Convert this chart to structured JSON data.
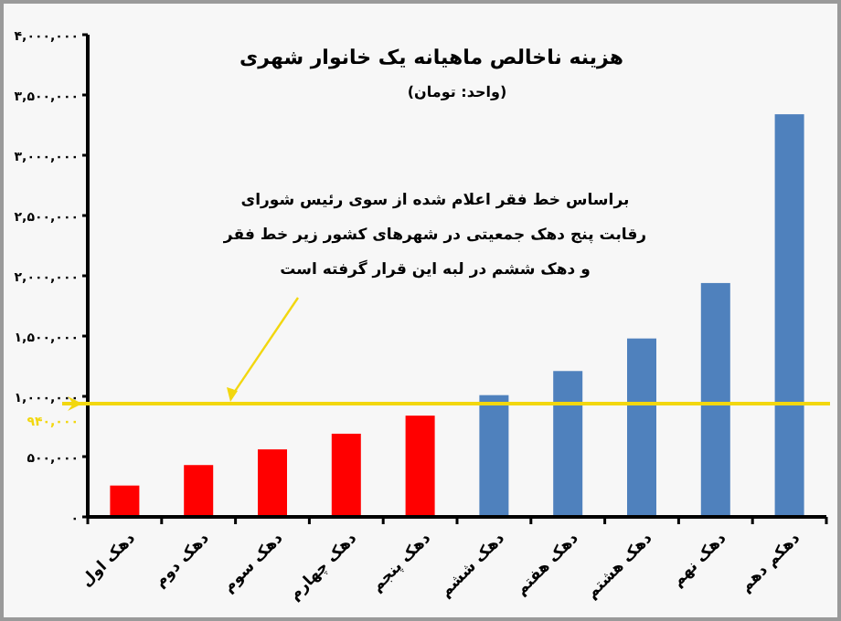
{
  "chart_data": {
    "type": "bar",
    "title": "هزینه ناخالص ماهیانه یک خانوار شهری",
    "subtitle": "(واحد: تومان)",
    "categories": [
      "دهک اول",
      "دهک دوم",
      "دهک سوم",
      "دهک چهارم",
      "دهک پنجم",
      "دهک ششم",
      "دهک هفتم",
      "دهک هشتم",
      "دهک نهم",
      "دهکم دهم"
    ],
    "values": [
      260000,
      430000,
      560000,
      690000,
      840000,
      1010000,
      1210000,
      1480000,
      1940000,
      3340000
    ],
    "colors": [
      "#ff0000",
      "#ff0000",
      "#ff0000",
      "#ff0000",
      "#ff0000",
      "#4f81bd",
      "#4f81bd",
      "#4f81bd",
      "#4f81bd",
      "#4f81bd"
    ],
    "ylim": [
      0,
      4000000
    ],
    "yticks": [
      {
        "value": 0,
        "label": "۰"
      },
      {
        "value": 500000,
        "label": "۵۰۰,۰۰۰"
      },
      {
        "value": 1000000,
        "label": "۱,۰۰۰,۰۰۰"
      },
      {
        "value": 1500000,
        "label": "۱,۵۰۰,۰۰۰"
      },
      {
        "value": 2000000,
        "label": "۲,۰۰۰,۰۰۰"
      },
      {
        "value": 2500000,
        "label": "۲,۵۰۰,۰۰۰"
      },
      {
        "value": 3000000,
        "label": "۳,۰۰۰,۰۰۰"
      },
      {
        "value": 3500000,
        "label": "۳,۵۰۰,۰۰۰"
      },
      {
        "value": 4000000,
        "label": "۴,۰۰۰,۰۰۰"
      }
    ],
    "ref_lines": [
      {
        "axis": "y",
        "value": 940000,
        "label": "۹۴۰,۰۰۰",
        "color": "#f2d70f"
      }
    ],
    "annotations": [
      "براساس خط فقر اعلام شده از سوی رئیس شورای رقابت پنج دهک جمعیتی در شهرهای کشور زیر خط فقر و دهک ششم در لبه این قرار گرفته است"
    ]
  }
}
